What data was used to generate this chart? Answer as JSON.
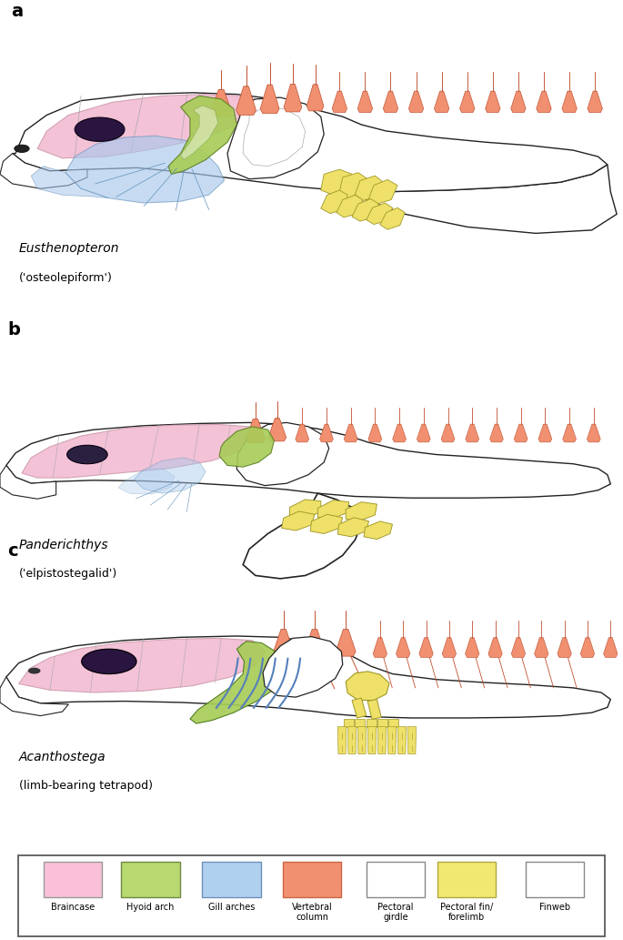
{
  "panels": [
    {
      "label": "a",
      "species": "Eusthenopteron",
      "subtitle": "('osteolepiform')"
    },
    {
      "label": "b",
      "species": "Panderichthys",
      "subtitle": "('elpistostegalid')"
    },
    {
      "label": "c",
      "species": "Acanthostega",
      "subtitle": "(limb-bearing tetrapod)"
    }
  ],
  "legend_items": [
    {
      "label": "Braincase",
      "fill": "#F9C0D8",
      "edge": "#999999"
    },
    {
      "label": "Hyoid arch",
      "fill": "#B8D870",
      "edge": "#708840"
    },
    {
      "label": "Gill arches",
      "fill": "#B0D0F0",
      "edge": "#7090B8"
    },
    {
      "label": "Vertebral\ncolumn",
      "fill": "#F09070",
      "edge": "#CC6644"
    },
    {
      "label": "Pectoral\ngirdle",
      "fill": "#FFFFFF",
      "edge": "#888888"
    },
    {
      "label": "Pectoral fin/\nforelimb",
      "fill": "#F0E870",
      "edge": "#B0A840"
    },
    {
      "label": "Finweb",
      "fill": "#FFFFFF",
      "edge": "#888888"
    }
  ],
  "colors": {
    "braincase": "#F2B8D0",
    "eye_dark": "#2A1540",
    "hyoid": "#A8CC58",
    "gill": "#A8C8EC",
    "vertebral": "#F09070",
    "fin": "#EEE068",
    "outline": "#222222",
    "bg": "#FFFFFF",
    "vert_edge": "#C05030"
  },
  "fig_w": 6.85,
  "fig_h": 10.33
}
